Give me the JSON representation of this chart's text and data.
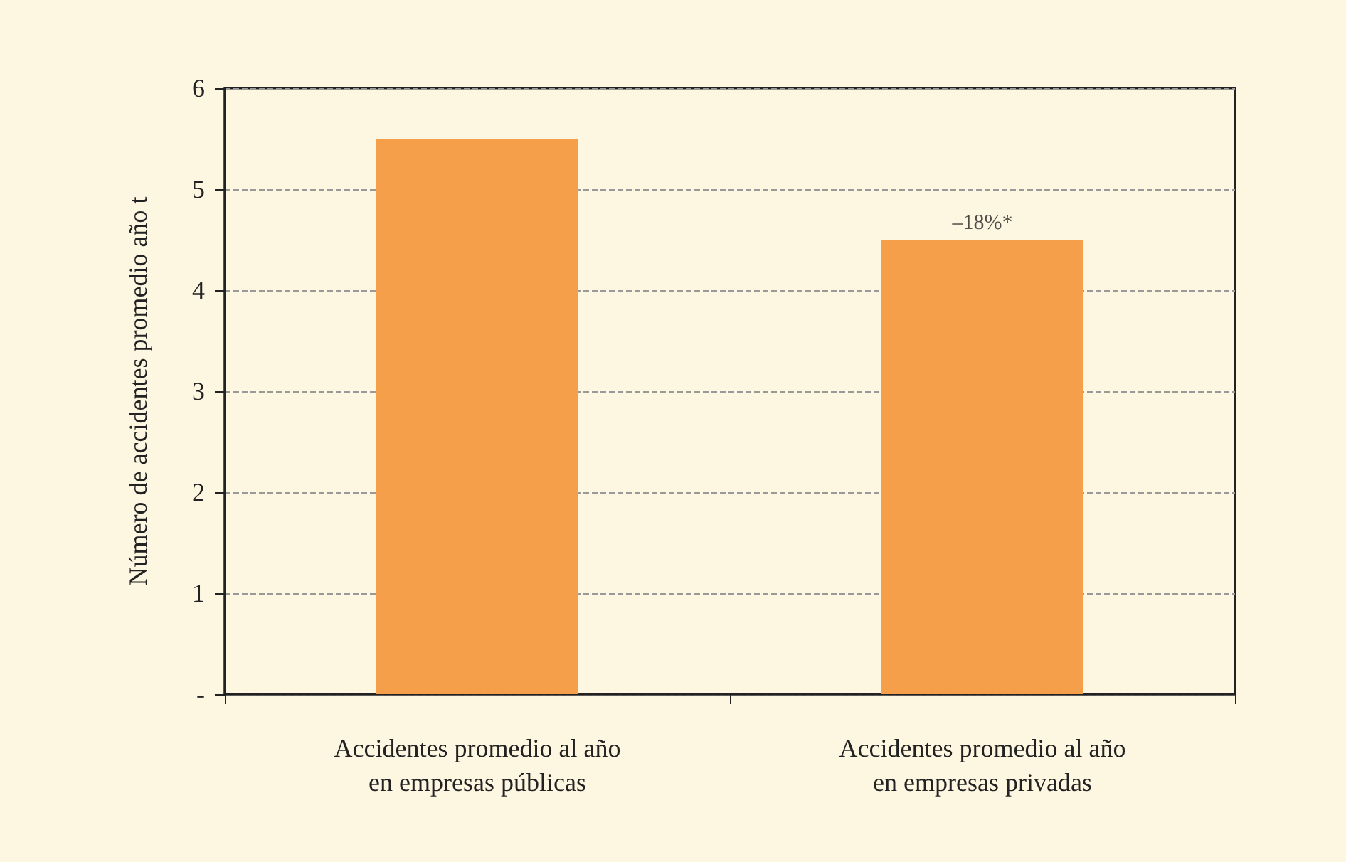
{
  "chart_data": {
    "type": "bar",
    "ylabel": "Número de accidentes promedio año t",
    "categories": [
      "Accidentes promedio al año\nen empresas públicas",
      "Accidentes promedio al año\nen empresas privadas"
    ],
    "values": [
      5.5,
      4.5
    ],
    "color": "#f59f4a",
    "ylim": [
      0,
      6
    ],
    "yticks": [
      {
        "value": 0,
        "label": "-"
      },
      1,
      2,
      3,
      4,
      5,
      6
    ],
    "grid": "y",
    "annotations": [
      {
        "text": "–18%*",
        "x": "Accidentes promedio al año\nen empresas privadas",
        "y": 4.5
      }
    ]
  }
}
